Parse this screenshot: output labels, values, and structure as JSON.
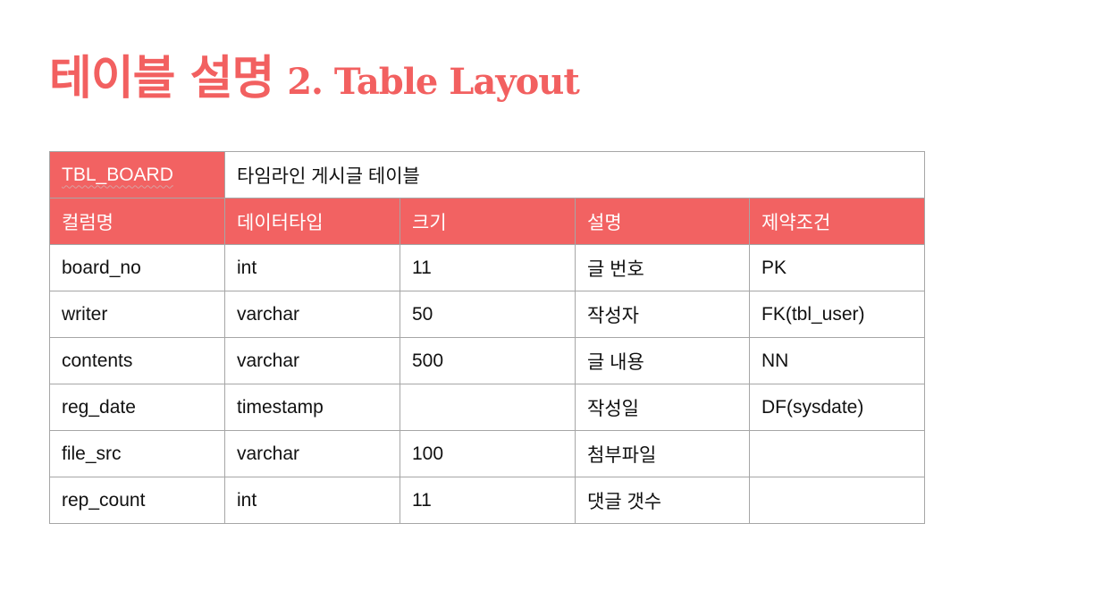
{
  "title": {
    "korean": "테이블 설명",
    "english": "2. Table Layout"
  },
  "colors": {
    "accent": "#f26262",
    "text": "#111111",
    "border": "#a6a6a6"
  },
  "table": {
    "name": "TBL_BOARD",
    "description": "타임라인 게시글 테이블",
    "headers": [
      "컬럼명",
      "데이터타입",
      "크기",
      "설명",
      "제약조건"
    ],
    "rows": [
      [
        "board_no",
        "int",
        "11",
        "글 번호",
        "PK"
      ],
      [
        "writer",
        "varchar",
        "50",
        "작성자",
        "FK(tbl_user)"
      ],
      [
        "contents",
        "varchar",
        "500",
        "글 내용",
        "NN"
      ],
      [
        "reg_date",
        "timestamp",
        "",
        "작성일",
        "DF(sysdate)"
      ],
      [
        "file_src",
        "varchar",
        "100",
        "첨부파일",
        ""
      ],
      [
        "rep_count",
        "int",
        "11",
        "댓글 갯수",
        ""
      ]
    ]
  }
}
